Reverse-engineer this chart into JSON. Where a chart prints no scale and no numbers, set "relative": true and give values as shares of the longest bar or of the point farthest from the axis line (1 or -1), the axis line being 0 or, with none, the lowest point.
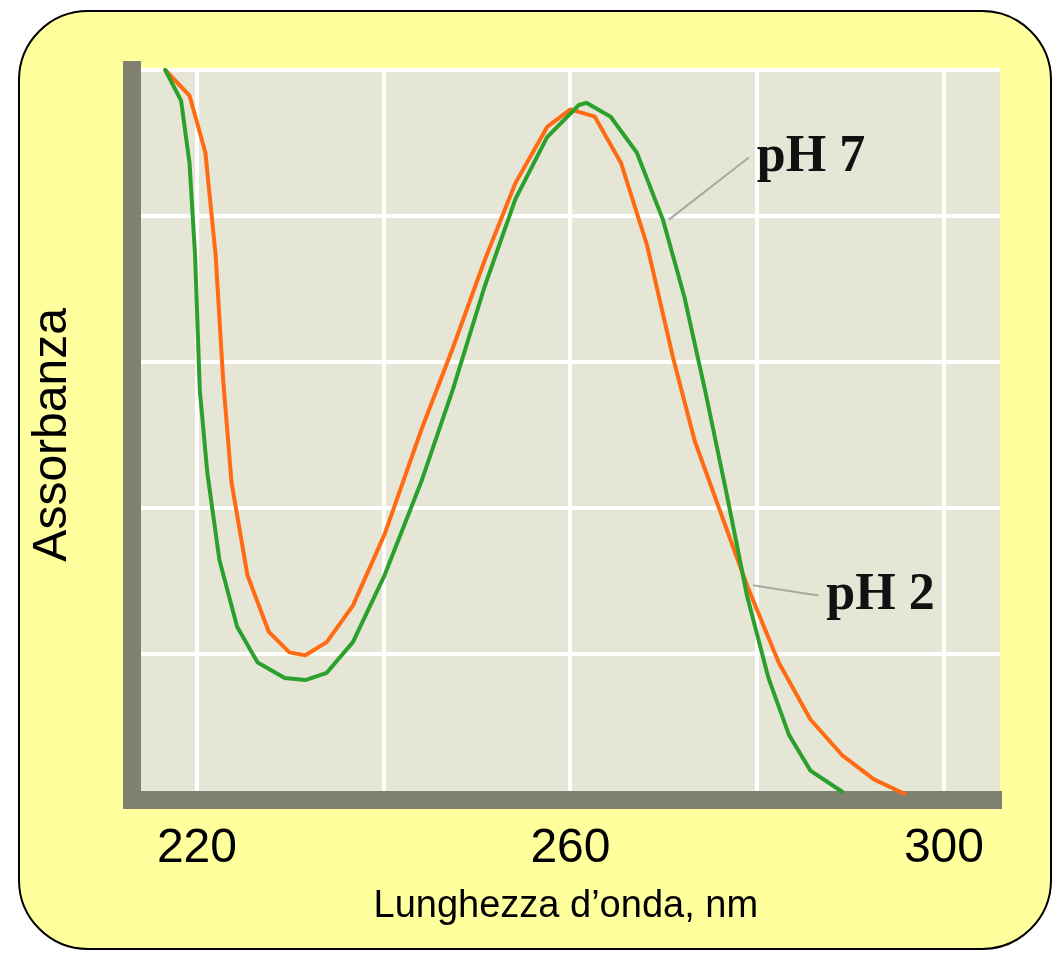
{
  "chart_data": {
    "type": "line",
    "xlabel": "Lunghezza d’onda, nm",
    "ylabel": "Assorbanza",
    "relative": true,
    "xlim": [
      213,
      306
    ],
    "xticks": [
      220,
      {
        "value": 240,
        "label": null
      },
      260,
      {
        "value": 280,
        "label": null
      },
      300
    ],
    "grid": true,
    "legend": false,
    "marker": "none",
    "line_style": "solid",
    "series": [
      {
        "name": "pH 7",
        "color": "#2ca02c",
        "x": [
          216.6,
          218.3,
          219.2,
          219.8,
          220.3,
          221.1,
          222.4,
          224.3,
          226.5,
          229.4,
          231.6,
          233.9,
          236.7,
          240.1,
          244.0,
          247.4,
          250.8,
          254.1,
          257.5,
          260.9,
          261.7,
          264.3,
          267.1,
          269.9,
          272.2,
          274.4,
          276.7,
          278.9,
          281.2,
          283.4,
          285.7,
          289.1
        ],
        "values": [
          1.0,
          0.958,
          0.873,
          0.746,
          0.562,
          0.449,
          0.329,
          0.237,
          0.188,
          0.167,
          0.164,
          0.174,
          0.216,
          0.308,
          0.435,
          0.562,
          0.703,
          0.823,
          0.908,
          0.952,
          0.955,
          0.936,
          0.887,
          0.795,
          0.689,
          0.562,
          0.421,
          0.28,
          0.167,
          0.089,
          0.04,
          0.011
        ]
      },
      {
        "name": "pH 2",
        "color": "#ff6a13",
        "x": [
          216.6,
          219.2,
          220.9,
          222.0,
          222.8,
          223.7,
          225.4,
          227.7,
          229.9,
          231.6,
          233.9,
          236.7,
          240.1,
          244.0,
          247.4,
          250.8,
          254.1,
          257.5,
          260.0,
          262.6,
          265.4,
          268.2,
          271.0,
          273.3,
          276.1,
          278.9,
          282.3,
          285.7,
          289.1,
          292.5,
          295.8
        ],
        "values": [
          1.0,
          0.965,
          0.887,
          0.746,
          0.576,
          0.435,
          0.308,
          0.23,
          0.202,
          0.198,
          0.216,
          0.266,
          0.364,
          0.506,
          0.619,
          0.739,
          0.845,
          0.922,
          0.946,
          0.936,
          0.873,
          0.76,
          0.605,
          0.492,
          0.393,
          0.294,
          0.188,
          0.11,
          0.061,
          0.028,
          0.008
        ]
      }
    ]
  }
}
